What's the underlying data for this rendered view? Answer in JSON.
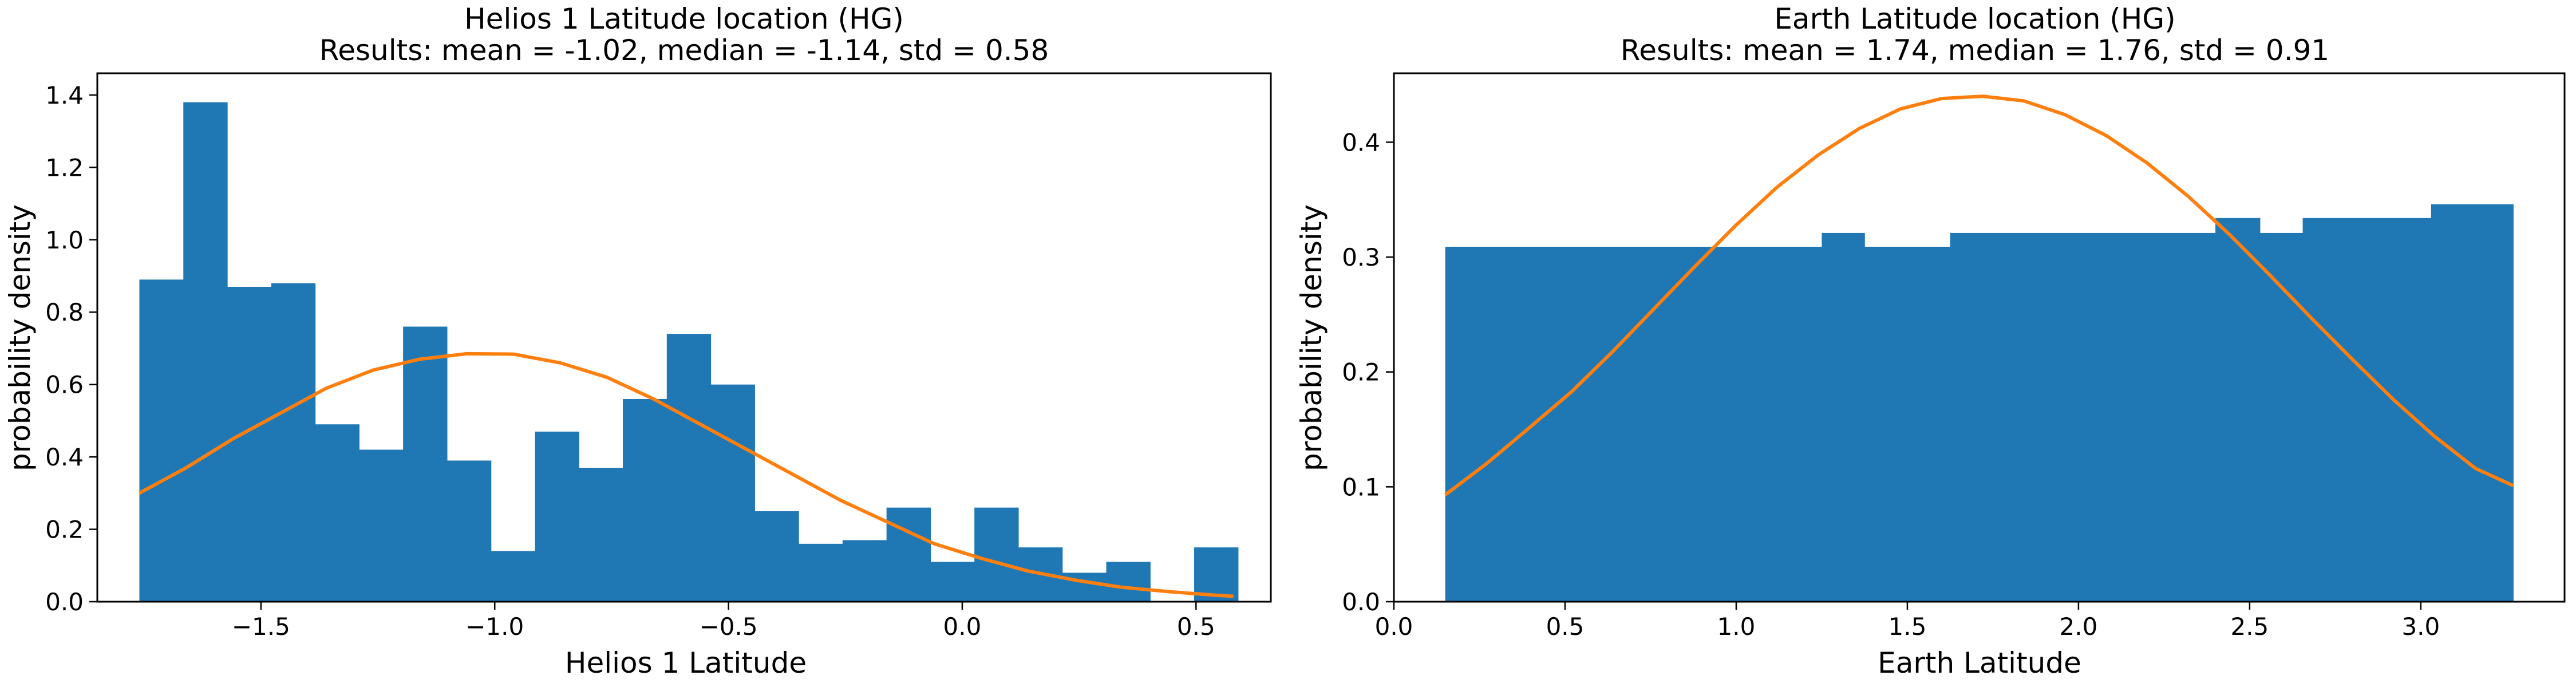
{
  "colors": {
    "bars": "#1f77b4",
    "curve": "#ff7f0e"
  },
  "chart_data": [
    {
      "type": "bar",
      "title": "Helios 1 Latitude location (HG)",
      "subtitle": "Results: mean = -1.02, median = -1.14, std = 0.58",
      "xlabel": "Helios 1 Latitude",
      "ylabel": "probability density",
      "xlim": [
        -1.85,
        0.66
      ],
      "ylim": [
        0,
        1.46
      ],
      "xticks": [
        -1.5,
        -1.0,
        -0.5,
        0.0,
        0.5
      ],
      "xtick_labels": [
        "−1.5",
        "−1.0",
        "−0.5",
        "0.0",
        "0.5"
      ],
      "yticks": [
        0.0,
        0.2,
        0.4,
        0.6,
        0.8,
        1.0,
        1.2,
        1.4
      ],
      "ytick_labels": [
        "0.0",
        "0.2",
        "0.4",
        "0.6",
        "0.8",
        "1.0",
        "1.2",
        "1.4"
      ],
      "bin_edges": [
        -1.76,
        -1.666,
        -1.572,
        -1.478,
        -1.384,
        -1.29,
        -1.196,
        -1.102,
        -1.008,
        -0.914,
        -0.82,
        -0.726,
        -0.632,
        -0.538,
        -0.444,
        -0.35,
        -0.256,
        -0.162,
        -0.068,
        0.026,
        0.12,
        0.214,
        0.308,
        0.402,
        0.496,
        0.59
      ],
      "values": [
        0.89,
        1.38,
        0.87,
        0.88,
        0.49,
        0.42,
        0.76,
        0.39,
        0.14,
        0.47,
        0.37,
        0.56,
        0.74,
        0.6,
        0.25,
        0.16,
        0.17,
        0.26,
        0.11,
        0.26,
        0.15,
        0.08,
        0.11,
        0.0,
        0.15
      ],
      "fit_curve": {
        "x": [
          -1.76,
          -1.66,
          -1.56,
          -1.46,
          -1.36,
          -1.26,
          -1.16,
          -1.06,
          -0.96,
          -0.86,
          -0.76,
          -0.66,
          -0.56,
          -0.46,
          -0.36,
          -0.26,
          -0.16,
          -0.06,
          0.04,
          0.14,
          0.24,
          0.34,
          0.44,
          0.54,
          0.58
        ],
        "y": [
          0.3,
          0.37,
          0.45,
          0.52,
          0.59,
          0.64,
          0.67,
          0.685,
          0.684,
          0.66,
          0.62,
          0.56,
          0.49,
          0.42,
          0.35,
          0.28,
          0.22,
          0.16,
          0.12,
          0.085,
          0.06,
          0.04,
          0.028,
          0.018,
          0.015
        ]
      }
    },
    {
      "type": "bar",
      "title": "Earth Latitude location (HG)",
      "subtitle": "Results: mean = 1.74, median = 1.76, std = 0.91",
      "xlabel": "Earth Latitude",
      "ylabel": "probability density",
      "xlim": [
        0.0,
        3.42
      ],
      "ylim": [
        0,
        0.46
      ],
      "xticks": [
        0.0,
        0.5,
        1.0,
        1.5,
        2.0,
        2.5,
        3.0
      ],
      "xtick_labels": [
        "0.0",
        "0.5",
        "1.0",
        "1.5",
        "2.0",
        "2.5",
        "3.0"
      ],
      "yticks": [
        0.0,
        0.1,
        0.2,
        0.3,
        0.4
      ],
      "ytick_labels": [
        "0.0",
        "0.1",
        "0.2",
        "0.3",
        "0.4"
      ],
      "bin_edges": [
        0.15,
        1.25,
        1.375,
        1.625,
        2.4,
        2.53,
        2.655,
        2.9,
        3.03,
        3.15,
        3.27
      ],
      "values": [
        0.309,
        0.321,
        0.309,
        0.321,
        0.334,
        0.321,
        0.334,
        0.334,
        0.346,
        0.346
      ],
      "fit_curve": {
        "x": [
          0.15,
          0.27,
          0.39,
          0.52,
          0.64,
          0.76,
          0.88,
          1.0,
          1.12,
          1.24,
          1.36,
          1.48,
          1.6,
          1.72,
          1.84,
          1.96,
          2.08,
          2.2,
          2.32,
          2.44,
          2.56,
          2.68,
          2.8,
          2.92,
          3.04,
          3.16,
          3.27
        ],
        "y": [
          0.093,
          0.12,
          0.15,
          0.183,
          0.218,
          0.255,
          0.292,
          0.328,
          0.361,
          0.389,
          0.412,
          0.429,
          0.438,
          0.44,
          0.436,
          0.424,
          0.406,
          0.382,
          0.353,
          0.32,
          0.284,
          0.247,
          0.211,
          0.176,
          0.144,
          0.116,
          0.101
        ]
      }
    }
  ]
}
